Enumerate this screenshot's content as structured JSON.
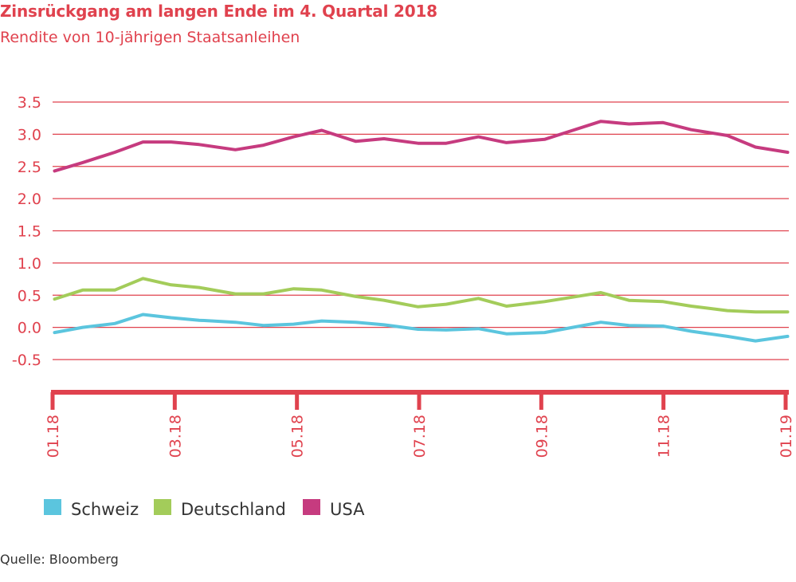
{
  "title": "Zinsrückgang am langen Ende im 4. Quartal 2018",
  "subtitle": "Rendite von 10-jährigen Staatsanleihen",
  "source": "Quelle: Bloomberg",
  "colors": {
    "accent": "#e0424e",
    "gridline": "#e0424e",
    "Schweiz": "#5bc5de",
    "Deutschland": "#a3cc5a",
    "USA": "#c63b7f"
  },
  "chart_data": {
    "type": "line",
    "title": "Zinsrückgang am langen Ende im 4. Quartal 2018",
    "subtitle": "Rendite von 10-jährigen Staatsanleihen",
    "xlabel": "",
    "ylabel": "",
    "ylim": [
      -0.5,
      3.5
    ],
    "yticks": [
      "3.5",
      "3.0",
      "2.5",
      "2.0",
      "1.5",
      "1.0",
      "0.5",
      "0.0",
      "-0.5"
    ],
    "xlim": [
      "2018-01",
      "2019-01"
    ],
    "xticks": [
      "01.18",
      "03.18",
      "05.18",
      "07.18",
      "09.18",
      "11.18",
      "01.19"
    ],
    "grid": true,
    "legend_position": "bottom-left",
    "x": [
      "2018-01-02",
      "2018-01-16",
      "2018-02-01",
      "2018-02-15",
      "2018-03-01",
      "2018-03-15",
      "2018-04-02",
      "2018-04-16",
      "2018-05-01",
      "2018-05-15",
      "2018-06-01",
      "2018-06-15",
      "2018-07-02",
      "2018-07-16",
      "2018-08-01",
      "2018-08-15",
      "2018-09-03",
      "2018-09-17",
      "2018-10-01",
      "2018-10-15",
      "2018-11-01",
      "2018-11-15",
      "2018-12-03",
      "2018-12-17",
      "2019-01-02"
    ],
    "series": [
      {
        "name": "Schweiz",
        "values": [
          -0.08,
          0.0,
          0.06,
          0.2,
          0.15,
          0.11,
          0.08,
          0.03,
          0.05,
          0.1,
          0.08,
          0.04,
          -0.03,
          -0.04,
          -0.02,
          -0.1,
          -0.08,
          0.0,
          0.08,
          0.03,
          0.02,
          -0.06,
          -0.14,
          -0.21,
          -0.14
        ]
      },
      {
        "name": "Deutschland",
        "values": [
          0.44,
          0.58,
          0.58,
          0.76,
          0.66,
          0.62,
          0.52,
          0.52,
          0.6,
          0.58,
          0.48,
          0.42,
          0.32,
          0.36,
          0.45,
          0.33,
          0.4,
          0.47,
          0.54,
          0.42,
          0.4,
          0.33,
          0.26,
          0.24,
          0.24
        ]
      },
      {
        "name": "USA",
        "values": [
          2.43,
          2.56,
          2.72,
          2.88,
          2.88,
          2.84,
          2.76,
          2.83,
          2.96,
          3.06,
          2.89,
          2.93,
          2.86,
          2.86,
          2.96,
          2.87,
          2.92,
          3.06,
          3.2,
          3.16,
          3.18,
          3.07,
          2.98,
          2.8,
          2.72
        ]
      }
    ]
  }
}
